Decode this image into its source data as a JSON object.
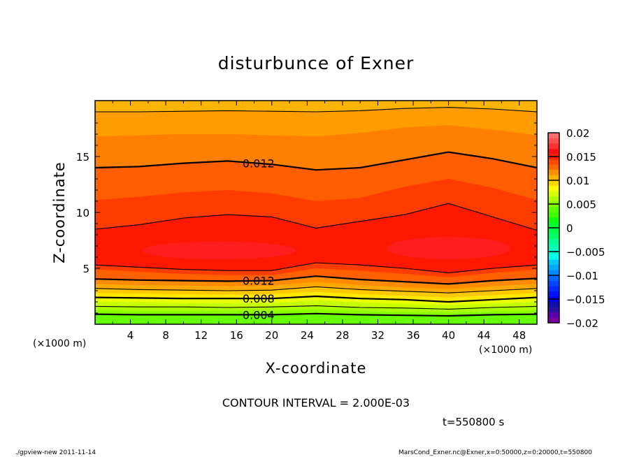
{
  "chart_data": {
    "type": "heatmap",
    "subtype": "filled-contour",
    "title": "disturbunce of Exner",
    "xlabel": "X-coordinate",
    "ylabel": "Z-coordinate",
    "x_unit_label": "(×1000 m)",
    "xlim": [
      0,
      50
    ],
    "ylim": [
      0,
      20
    ],
    "x_ticks": [
      4,
      8,
      12,
      16,
      20,
      24,
      28,
      32,
      36,
      40,
      44,
      48
    ],
    "y_ticks": [
      5,
      10,
      15
    ],
    "contour_interval_text": "CONTOUR INTERVAL = 2.000E-03",
    "time_text": "t=550800 s",
    "top_color": "#FFB400",
    "x_points": [
      0,
      5,
      10,
      15,
      20,
      25,
      30,
      35,
      40,
      45,
      50
    ],
    "boundaries": [
      {
        "line": "thin",
        "value": 0.01,
        "below": "#FF9C00",
        "z": [
          19.0,
          19.0,
          19.05,
          19.1,
          19.05,
          19.0,
          19.1,
          19.3,
          19.4,
          19.25,
          19.0
        ]
      },
      {
        "line": "none",
        "below": "#FF7F00",
        "z": [
          16.8,
          16.9,
          17.0,
          17.0,
          16.9,
          16.8,
          17.1,
          17.6,
          17.8,
          17.4,
          16.9
        ]
      },
      {
        "line": "thick",
        "value": 0.012,
        "below": "#FF5E00",
        "z": [
          14.0,
          14.1,
          14.4,
          14.6,
          14.3,
          13.8,
          14.0,
          14.7,
          15.4,
          14.8,
          14.0
        ]
      },
      {
        "line": "none",
        "below": "#FF3C00",
        "z": [
          11.1,
          11.4,
          11.8,
          12.0,
          11.7,
          11.0,
          11.3,
          12.3,
          13.0,
          12.2,
          11.1
        ]
      },
      {
        "line": "thin",
        "value": 0.014,
        "below": "#FF1800",
        "z": [
          8.5,
          8.9,
          9.5,
          9.8,
          9.6,
          8.6,
          9.2,
          9.8,
          10.8,
          9.6,
          8.4
        ]
      },
      {
        "line": "thin",
        "value": 0.014,
        "below": "#FF3C00",
        "z": [
          5.3,
          5.1,
          4.9,
          4.8,
          4.8,
          5.5,
          5.3,
          5.0,
          4.6,
          5.0,
          5.3
        ]
      },
      {
        "line": "none",
        "below": "#FF6000",
        "z": [
          4.9,
          4.7,
          4.5,
          4.4,
          4.4,
          5.0,
          4.8,
          4.5,
          4.2,
          4.6,
          4.9
        ]
      },
      {
        "line": "thick",
        "value": 0.012,
        "below": "#FF8C00",
        "z": [
          4.05,
          3.95,
          3.9,
          3.85,
          3.9,
          4.3,
          4.0,
          3.8,
          3.6,
          3.9,
          4.1
        ]
      },
      {
        "line": "none",
        "below": "#FFA800",
        "z": [
          3.6,
          3.5,
          3.45,
          3.4,
          3.45,
          3.8,
          3.5,
          3.3,
          3.15,
          3.4,
          3.6
        ]
      },
      {
        "line": "thin",
        "value": 0.01,
        "below": "#FFC800",
        "z": [
          3.2,
          3.1,
          3.05,
          3.0,
          3.05,
          3.35,
          3.1,
          2.95,
          2.8,
          3.0,
          3.2
        ]
      },
      {
        "line": "none",
        "below": "#FFE800",
        "z": [
          2.8,
          2.75,
          2.7,
          2.65,
          2.7,
          2.9,
          2.7,
          2.55,
          2.4,
          2.6,
          2.8
        ]
      },
      {
        "line": "thick",
        "value": 0.008,
        "below": "#E8FF00",
        "z": [
          2.4,
          2.35,
          2.3,
          2.3,
          2.3,
          2.5,
          2.3,
          2.2,
          2.0,
          2.2,
          2.4
        ]
      },
      {
        "line": "none",
        "below": "#C8FF00",
        "z": [
          2.0,
          1.95,
          1.9,
          1.9,
          1.9,
          2.1,
          1.95,
          1.8,
          1.7,
          1.85,
          2.0
        ]
      },
      {
        "line": "thin",
        "value": 0.006,
        "below": "#A8FF00",
        "z": [
          1.6,
          1.55,
          1.55,
          1.5,
          1.55,
          1.65,
          1.5,
          1.45,
          1.35,
          1.5,
          1.6
        ]
      },
      {
        "line": "none",
        "below": "#88FF00",
        "z": [
          1.25,
          1.2,
          1.2,
          1.2,
          1.2,
          1.3,
          1.2,
          1.1,
          1.05,
          1.15,
          1.25
        ]
      },
      {
        "line": "thick",
        "value": 0.004,
        "below": "#66FF00",
        "z": [
          0.9,
          0.85,
          0.85,
          0.85,
          0.85,
          0.95,
          0.85,
          0.8,
          0.75,
          0.85,
          0.9
        ]
      }
    ],
    "maxima": [
      {
        "x": 14,
        "z": 6.6,
        "rx": 8.7,
        "rz": 0.8,
        "color": "#FF1E1E"
      },
      {
        "x": 40,
        "z": 6.8,
        "rx": 7,
        "rz": 1.0,
        "color": "#FF1E1E"
      }
    ],
    "contour_labels": [
      {
        "text": "0.012",
        "x": 18.5,
        "z": 14.4
      },
      {
        "text": "0.012",
        "x": 18.5,
        "z": 3.9
      },
      {
        "text": "0.008",
        "x": 18.5,
        "z": 2.3
      },
      {
        "text": "0.004",
        "x": 18.5,
        "z": 0.85
      }
    ],
    "colorbar": {
      "range": [
        -0.02,
        0.02
      ],
      "tick_labels": [
        "0.02",
        "0.015",
        "0.01",
        "0.005",
        "0",
        "-0.005",
        "-0.01",
        "-0.015",
        "-0.02"
      ],
      "colors_bottom_to_top": [
        "#7A00A0",
        "#5A00A8",
        "#2A10A0",
        "#1010A8",
        "#0000E8",
        "#0010F8",
        "#0028FF",
        "#0048FF",
        "#0068FF",
        "#0088FF",
        "#00A8FF",
        "#00C8FF",
        "#00FFF0",
        "#00FFD0",
        "#00FFB0",
        "#00FF90",
        "#00FF60",
        "#00FF48",
        "#00FF30",
        "#10FF10",
        "#40FF00",
        "#60FF00",
        "#88FF00",
        "#B0FF00",
        "#D8FF00",
        "#FFFF00",
        "#FFD800",
        "#FFB400",
        "#FF9000",
        "#FF6A00",
        "#FF4800",
        "#FF2000",
        "#FF1010",
        "#FF3030",
        "#FF5050",
        "#FF7070"
      ]
    }
  },
  "footer": {
    "left": "./gpview-new  2011-11-14",
    "right": "MarsCond_Exner.nc@Exner,x=0:50000,z=0:20000,t=550800"
  }
}
